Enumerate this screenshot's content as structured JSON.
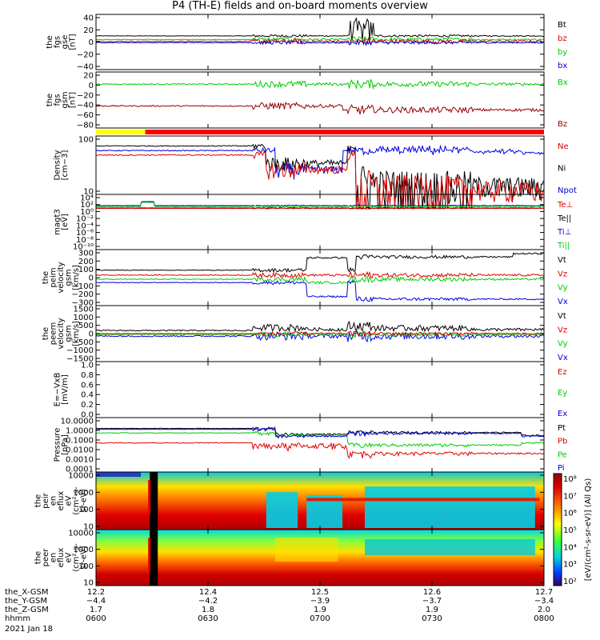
{
  "title": "P4 (TH-E) fields and on-board moments overview",
  "colors": {
    "black": "#000000",
    "red": "#e00000",
    "green": "#00cc00",
    "blue": "#0000e0",
    "darkred": "#990000",
    "yellow": "#ffff00"
  },
  "panels": [
    {
      "id": "fgs_gse",
      "ylabel": [
        "the",
        "fgs",
        "gse",
        "[nT]"
      ],
      "ticks": [
        "40",
        "20",
        "0",
        "−20",
        "−40"
      ],
      "legend": [
        {
          "text": "Bt",
          "color": "#000000"
        },
        {
          "text": "bz",
          "color": "#e00000"
        },
        {
          "text": "by",
          "color": "#00cc00"
        },
        {
          "text": "bx",
          "color": "#0000e0"
        }
      ]
    },
    {
      "id": "fgs_gsm",
      "ylabel": [
        "the",
        "fgs",
        "gsm",
        "[nT]"
      ],
      "ticks": [
        "20",
        "0",
        "−20",
        "−40",
        "−60",
        "−80"
      ],
      "legend": [
        {
          "text": "Bx",
          "color": "#00cc00"
        },
        {
          "text": "Bz",
          "color": "#990000"
        }
      ]
    },
    {
      "id": "density",
      "ylabel": [
        "Density",
        "[cm−3]"
      ],
      "ticks": [
        "100",
        "10"
      ],
      "legend": [
        {
          "text": "Ne",
          "color": "#e00000"
        },
        {
          "text": "Ni",
          "color": "#000000"
        },
        {
          "text": "Npot",
          "color": "#0000e0"
        }
      ]
    },
    {
      "id": "temp",
      "ylabel": [
        "magt3",
        "[eV]"
      ],
      "ticks": [
        "10⁴",
        "10²",
        "10⁰",
        "10⁻²",
        "10⁻⁴",
        "10⁻⁶",
        "10⁻⁸",
        "10⁻¹⁰"
      ],
      "legend": [
        {
          "text": "Te⊥",
          "color": "#e00000"
        },
        {
          "text": "Te||",
          "color": "#000000"
        },
        {
          "text": "Ti⊥",
          "color": "#0000e0"
        },
        {
          "text": "Ti||",
          "color": "#00cc00"
        }
      ]
    },
    {
      "id": "peim",
      "ylabel": [
        "the",
        "peim",
        "velocity",
        "gsm",
        "[km/s]"
      ],
      "ticks": [
        "300",
        "200",
        "100",
        "0",
        "−100",
        "−200",
        "−300"
      ],
      "legend": [
        {
          "text": "Vt",
          "color": "#000000"
        },
        {
          "text": "Vz",
          "color": "#e00000"
        },
        {
          "text": "Vy",
          "color": "#00cc00"
        },
        {
          "text": "Vx",
          "color": "#0000e0"
        }
      ]
    },
    {
      "id": "peem",
      "ylabel": [
        "the",
        "peem",
        "velocity",
        "gsm",
        "[km/s]"
      ],
      "ticks": [
        "1500",
        "1000",
        "500",
        "0",
        "−500",
        "−1000",
        "−1500"
      ],
      "legend": [
        {
          "text": "Vt",
          "color": "#000000"
        },
        {
          "text": "Vz",
          "color": "#e00000"
        },
        {
          "text": "Vy",
          "color": "#00cc00"
        },
        {
          "text": "Vx",
          "color": "#0000e0"
        }
      ]
    },
    {
      "id": "efield",
      "ylabel": [
        "E=−VxB",
        "[mV/m]"
      ],
      "ticks": [
        "1.0",
        "0.8",
        "0.6",
        "0.4",
        "0.2",
        "0.0"
      ],
      "legend": [
        {
          "text": "Ez",
          "color": "#e00000"
        },
        {
          "text": "Ey",
          "color": "#00cc00"
        },
        {
          "text": "Ex",
          "color": "#0000e0"
        }
      ]
    },
    {
      "id": "pressure",
      "ylabel": [
        "Pressure",
        "[nPa]"
      ],
      "ticks": [
        "10.0000",
        "1.0000",
        "0.1000",
        "0.0100",
        "0.0010",
        "0.0001"
      ],
      "legend": [
        {
          "text": "Pt",
          "color": "#000000"
        },
        {
          "text": "Pb",
          "color": "#e00000"
        },
        {
          "text": "Pe",
          "color": "#00cc00"
        },
        {
          "text": "Pi",
          "color": "#0000e0"
        }
      ]
    },
    {
      "id": "peir",
      "ylabel": [
        "the",
        "peir",
        "en",
        "eflux",
        "eV",
        "(cm²-s-",
        "sr-eV)"
      ],
      "ticks": [
        "10000",
        "1000",
        "100",
        "10"
      ],
      "legend": []
    },
    {
      "id": "peer",
      "ylabel": [
        "the",
        "peer",
        "en",
        "eflux",
        "eV",
        "(cm²-s-",
        "sr-eV)"
      ],
      "ticks": [
        "10000",
        "1000",
        "100",
        "10"
      ],
      "legend": []
    }
  ],
  "colorbar": {
    "ticks": [
      "10⁸",
      "10⁷",
      "10⁶",
      "10⁵",
      "10⁴",
      "10³",
      "10²"
    ],
    "label": "[eV/(cm²-s-sr-eV)] (All Qs)"
  },
  "xaxis": {
    "row_labels": [
      "the_X-GSM",
      "the_Y-GSM",
      "the_Z-GSM",
      "hhmm",
      "2021 Jan 18"
    ],
    "columns": [
      {
        "x": "12.2",
        "y": "−4.4",
        "z": "1.7",
        "t": "0600"
      },
      {
        "x": "12.4",
        "y": "−4.2",
        "z": "1.8",
        "t": "0630"
      },
      {
        "x": "12.5",
        "y": "−3.9",
        "z": "1.9",
        "t": "0700"
      },
      {
        "x": "12.6",
        "y": "−3.7",
        "z": "1.9",
        "t": "0730"
      },
      {
        "x": "12.7",
        "y": "−3.4",
        "z": "2.0",
        "t": "0800"
      }
    ]
  },
  "chart_data": {
    "type": "line",
    "title": "P4 (TH-E) fields and on-board moments overview",
    "x_time_ticks": [
      "0600",
      "0630",
      "0700",
      "0730",
      "0800"
    ],
    "x_range": [
      "0600",
      "0800"
    ],
    "status_bar": [
      {
        "color": "yellow",
        "from": "0600",
        "to": "0615"
      },
      {
        "color": "red",
        "from": "0615",
        "to": "0800"
      }
    ],
    "series_summary": [
      {
        "panel": "fgs_gse",
        "name": "Bt",
        "level": 10
      },
      {
        "panel": "fgs_gse",
        "name": "bx",
        "level": 2
      },
      {
        "panel": "fgs_gsm",
        "name": "Bx",
        "level": 0
      },
      {
        "panel": "fgs_gsm",
        "name": "Bz",
        "level": -50
      },
      {
        "panel": "density",
        "name": "Ni",
        "level": 80
      },
      {
        "panel": "density",
        "name": "Npot",
        "level": 70
      },
      {
        "panel": "pressure",
        "name": "Pt",
        "level": 1.5
      },
      {
        "panel": "pressure",
        "name": "Pi",
        "level": 0.5
      },
      {
        "panel": "pressure",
        "name": "Pe",
        "level": 0.1
      },
      {
        "panel": "pressure",
        "name": "Pb",
        "level": 0.05
      }
    ]
  }
}
